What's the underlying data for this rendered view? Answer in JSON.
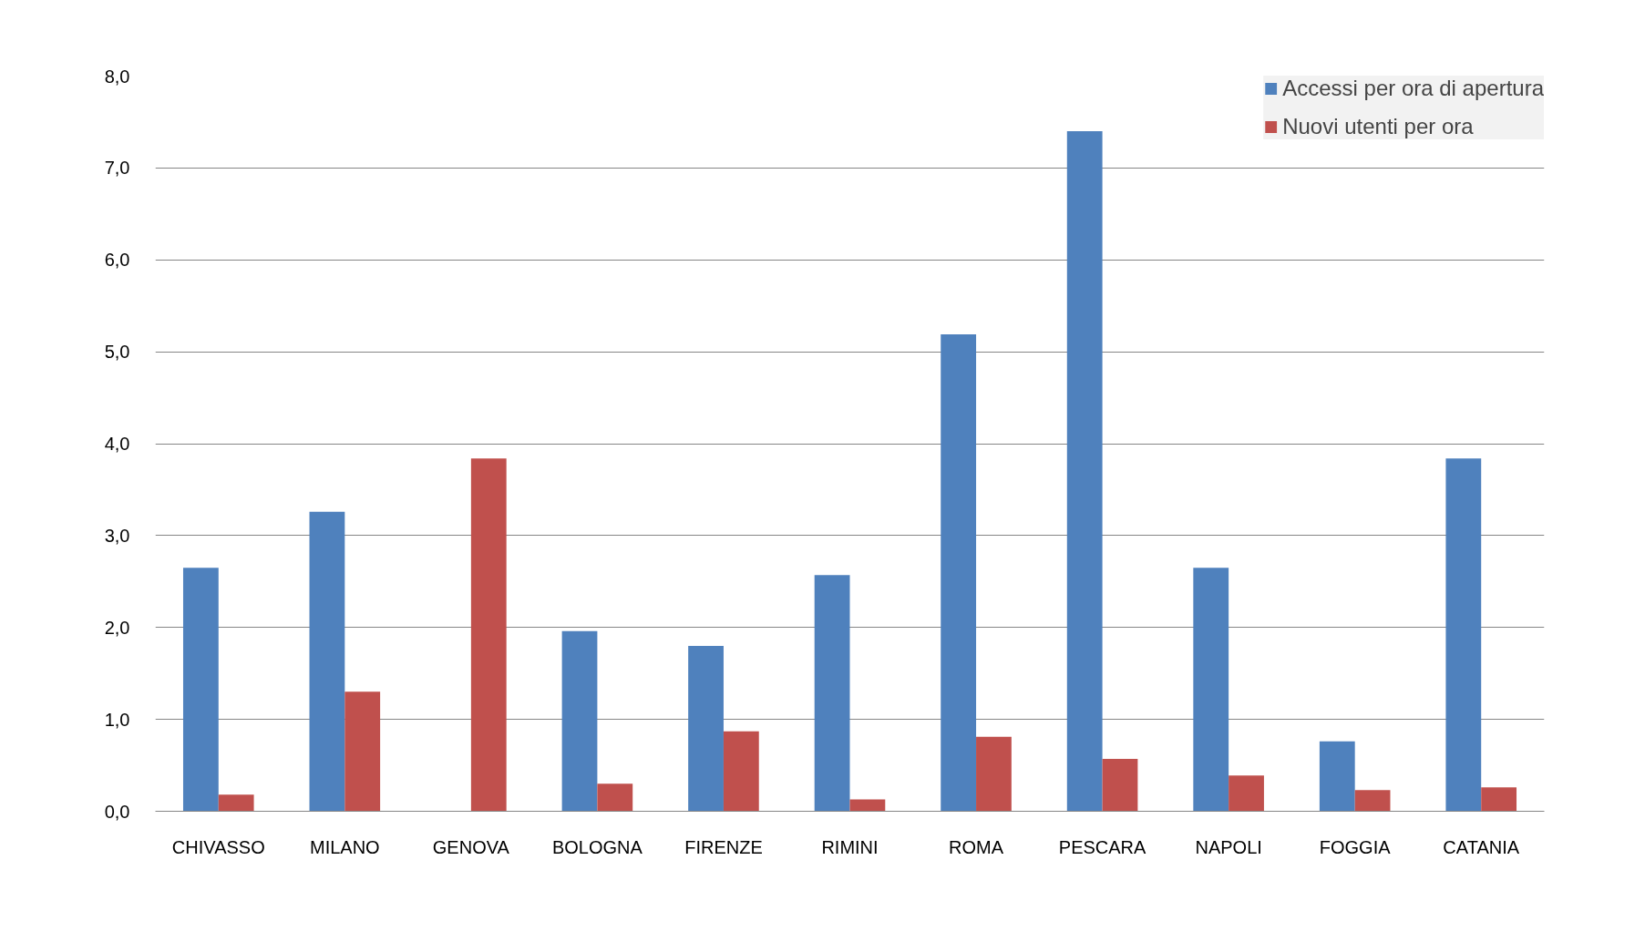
{
  "chart_data": {
    "type": "bar",
    "categories": [
      "CHIVASSO",
      "MILANO",
      "GENOVA",
      "BOLOGNA",
      "FIRENZE",
      "RIMINI",
      "ROMA",
      "PESCARA",
      "NAPOLI",
      "FOGGIA",
      "CATANIA"
    ],
    "series": [
      {
        "name": "Accessi per ora di apertura",
        "color": "#4f81bd",
        "values": [
          2.65,
          3.26,
          null,
          1.96,
          1.8,
          2.57,
          5.19,
          7.4,
          2.65,
          0.76,
          3.84
        ]
      },
      {
        "name": "Nuovi utenti per ora",
        "color": "#c0504d",
        "values": [
          0.18,
          1.3,
          3.84,
          0.3,
          0.87,
          0.13,
          0.81,
          0.57,
          0.39,
          0.23,
          0.26
        ]
      }
    ],
    "ylim": [
      0,
      8
    ],
    "yticks": [
      {
        "value": 0,
        "label": "0,0"
      },
      {
        "value": 1,
        "label": "1,0"
      },
      {
        "value": 2,
        "label": "2,0"
      },
      {
        "value": 3,
        "label": "3,0"
      },
      {
        "value": 4,
        "label": "4,0"
      },
      {
        "value": 5,
        "label": "5,0"
      },
      {
        "value": 6,
        "label": "6,0"
      },
      {
        "value": 7,
        "label": "7,0"
      },
      {
        "value": 8,
        "label": "8,0"
      }
    ],
    "grid": "y",
    "legend": "top right"
  }
}
